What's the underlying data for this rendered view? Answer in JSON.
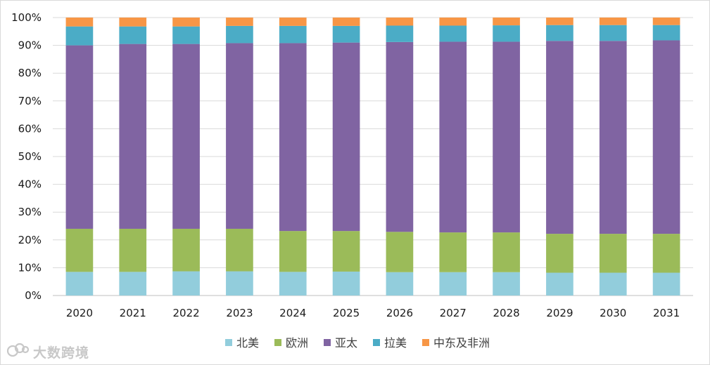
{
  "chart_data": {
    "type": "bar",
    "stacked": true,
    "percent": true,
    "categories": [
      "2020",
      "2021",
      "2022",
      "2023",
      "2024",
      "2025",
      "2026",
      "2027",
      "2028",
      "2029",
      "2030",
      "2031"
    ],
    "series": [
      {
        "name": "北美",
        "color": "#92cddc",
        "values": [
          8.5,
          8.5,
          8.7,
          8.7,
          8.5,
          8.6,
          8.4,
          8.4,
          8.4,
          8.2,
          8.2,
          8.2
        ]
      },
      {
        "name": "欧洲",
        "color": "#9bbb59",
        "values": [
          15.5,
          15.5,
          15.3,
          15.3,
          14.7,
          14.6,
          14.5,
          14.3,
          14.3,
          14.0,
          14.0,
          14.0
        ]
      },
      {
        "name": "亚太",
        "color": "#8064a2",
        "values": [
          66.0,
          66.5,
          66.5,
          66.8,
          67.6,
          67.8,
          68.3,
          68.6,
          68.6,
          69.4,
          69.4,
          69.6
        ]
      },
      {
        "name": "拉美",
        "color": "#4bacc6",
        "values": [
          6.8,
          6.3,
          6.3,
          6.2,
          6.2,
          6.0,
          5.9,
          5.8,
          5.9,
          5.7,
          5.7,
          5.5
        ]
      },
      {
        "name": "中东及非洲",
        "color": "#f79646",
        "values": [
          3.2,
          3.2,
          3.2,
          3.0,
          3.0,
          3.0,
          2.9,
          2.9,
          2.8,
          2.7,
          2.7,
          2.7
        ]
      }
    ],
    "y_ticks": [
      "0%",
      "10%",
      "20%",
      "30%",
      "40%",
      "50%",
      "60%",
      "70%",
      "80%",
      "90%",
      "100%"
    ],
    "ylim": [
      0,
      100
    ],
    "grid": true,
    "legend_position": "bottom"
  },
  "watermark": {
    "text": "大数跨境",
    "icon": "watermark-logo-icon"
  }
}
